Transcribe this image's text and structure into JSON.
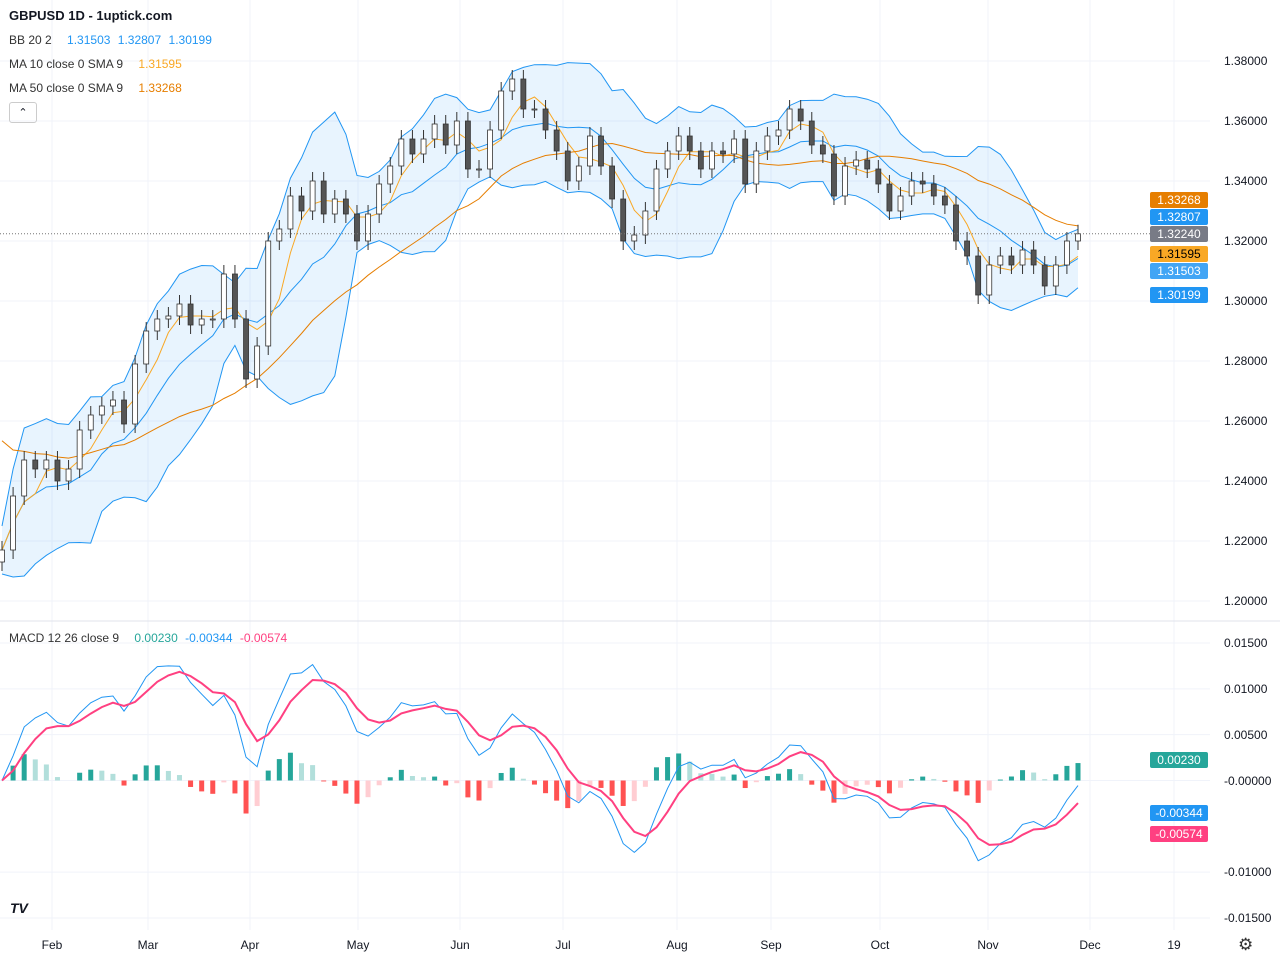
{
  "header": {
    "title": "GBPUSD 1D - 1uptick.com"
  },
  "legend": {
    "bb": {
      "label": "BB 20 2",
      "basis": "1.31503",
      "upper": "1.32807",
      "lower": "1.30199"
    },
    "ma10": {
      "label": "MA 10 close 0 SMA 9",
      "value": "1.31595"
    },
    "ma50": {
      "label": "MA 50 close 0 SMA 9",
      "value": "1.33268"
    },
    "macd": {
      "label": "MACD 12 26 close 9",
      "hist": "0.00230",
      "macd": "-0.00344",
      "signal": "-0.00574"
    },
    "collapse_icon": "chevron-up-icon"
  },
  "colors": {
    "bb": "#2196f3",
    "ma10": "#f9a825",
    "ma50": "#e67e00",
    "last": "#787b86",
    "hist_up": "#26a69a",
    "hist_up_light": "#b2dfdb",
    "hist_down": "#ff5252",
    "hist_down_light": "#ffcdd2",
    "macd": "#2196f3",
    "signal": "#ff4081"
  },
  "price_tags": {
    "ma50": "1.33268",
    "bb_upper": "1.32807",
    "last": "1.32240",
    "ma10": "1.31595",
    "bb_basis": "1.31503",
    "bb_lower": "1.30199"
  },
  "macd_tags": {
    "hist": "0.00230",
    "macd": "-0.00344",
    "signal": "-0.00574"
  },
  "chart_data": [
    {
      "type": "candlestick",
      "symbol": "GBPUSD",
      "interval": "1D",
      "ylim": [
        1.2,
        1.38
      ],
      "y_ticks": [
        "1.38000",
        "1.36000",
        "1.34000",
        "1.32000",
        "1.30000",
        "1.28000",
        "1.26000",
        "1.24000",
        "1.22000",
        "1.20000"
      ],
      "x_ticks": [
        "Feb",
        "Mar",
        "Apr",
        "May",
        "Jun",
        "Jul",
        "Aug",
        "Sep",
        "Oct",
        "Nov",
        "Dec",
        "19"
      ],
      "closes": [
        1.217,
        1.235,
        1.247,
        1.244,
        1.247,
        1.24,
        1.244,
        1.257,
        1.262,
        1.265,
        1.267,
        1.259,
        1.279,
        1.29,
        1.294,
        1.295,
        1.299,
        1.292,
        1.294,
        1.294,
        1.309,
        1.294,
        1.274,
        1.285,
        1.32,
        1.324,
        1.335,
        1.33,
        1.34,
        1.329,
        1.334,
        1.329,
        1.32,
        1.329,
        1.339,
        1.345,
        1.354,
        1.349,
        1.354,
        1.359,
        1.352,
        1.36,
        1.344,
        1.344,
        1.357,
        1.37,
        1.374,
        1.364,
        1.364,
        1.357,
        1.35,
        1.34,
        1.345,
        1.355,
        1.345,
        1.334,
        1.32,
        1.322,
        1.33,
        1.344,
        1.35,
        1.355,
        1.35,
        1.344,
        1.35,
        1.349,
        1.354,
        1.339,
        1.35,
        1.355,
        1.357,
        1.364,
        1.36,
        1.352,
        1.349,
        1.335,
        1.345,
        1.347,
        1.344,
        1.339,
        1.33,
        1.335,
        1.34,
        1.339,
        1.335,
        1.332,
        1.32,
        1.315,
        1.302,
        1.312,
        1.315,
        1.312,
        1.317,
        1.312,
        1.305,
        1.312,
        1.32,
        1.3224
      ],
      "last_price": 1.3224
    },
    {
      "type": "macd",
      "ylim": [
        -0.015,
        0.015
      ],
      "y_ticks": [
        "0.01500",
        "0.01000",
        "0.00500",
        "-0.00000",
        "-0.01000",
        "-0.01500"
      ]
    }
  ]
}
